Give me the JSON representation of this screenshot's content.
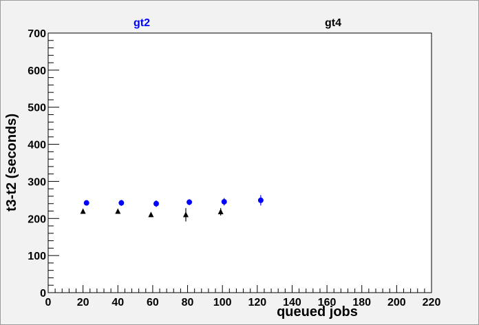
{
  "chart_data": {
    "type": "scatter",
    "xlabel": "queued jobs",
    "ylabel": "t3-t2 (seconds)",
    "xlim": [
      0,
      220
    ],
    "ylim": [
      0,
      700
    ],
    "x_ticks": [
      0,
      20,
      40,
      60,
      80,
      100,
      120,
      140,
      160,
      180,
      200,
      220
    ],
    "y_ticks": [
      0,
      100,
      200,
      300,
      400,
      500,
      600,
      700
    ],
    "grid": false,
    "series": [
      {
        "name": "gt2",
        "color": "#0000ff",
        "marker": "circle",
        "points": [
          {
            "x": 22,
            "y": 242,
            "err": 5
          },
          {
            "x": 42,
            "y": 242,
            "err": 8
          },
          {
            "x": 62,
            "y": 240,
            "err": 9
          },
          {
            "x": 81,
            "y": 244,
            "err": 8
          },
          {
            "x": 101,
            "y": 245,
            "err": 10
          },
          {
            "x": 122,
            "y": 249,
            "err": 14
          }
        ]
      },
      {
        "name": "gt4",
        "color": "#000000",
        "marker": "triangle",
        "points": [
          {
            "x": 20,
            "y": 219,
            "err": 3
          },
          {
            "x": 40,
            "y": 219,
            "err": 3
          },
          {
            "x": 59,
            "y": 210,
            "err": 4
          },
          {
            "x": 79,
            "y": 210,
            "err": 18
          },
          {
            "x": 99,
            "y": 218,
            "err": 10
          }
        ]
      }
    ]
  }
}
